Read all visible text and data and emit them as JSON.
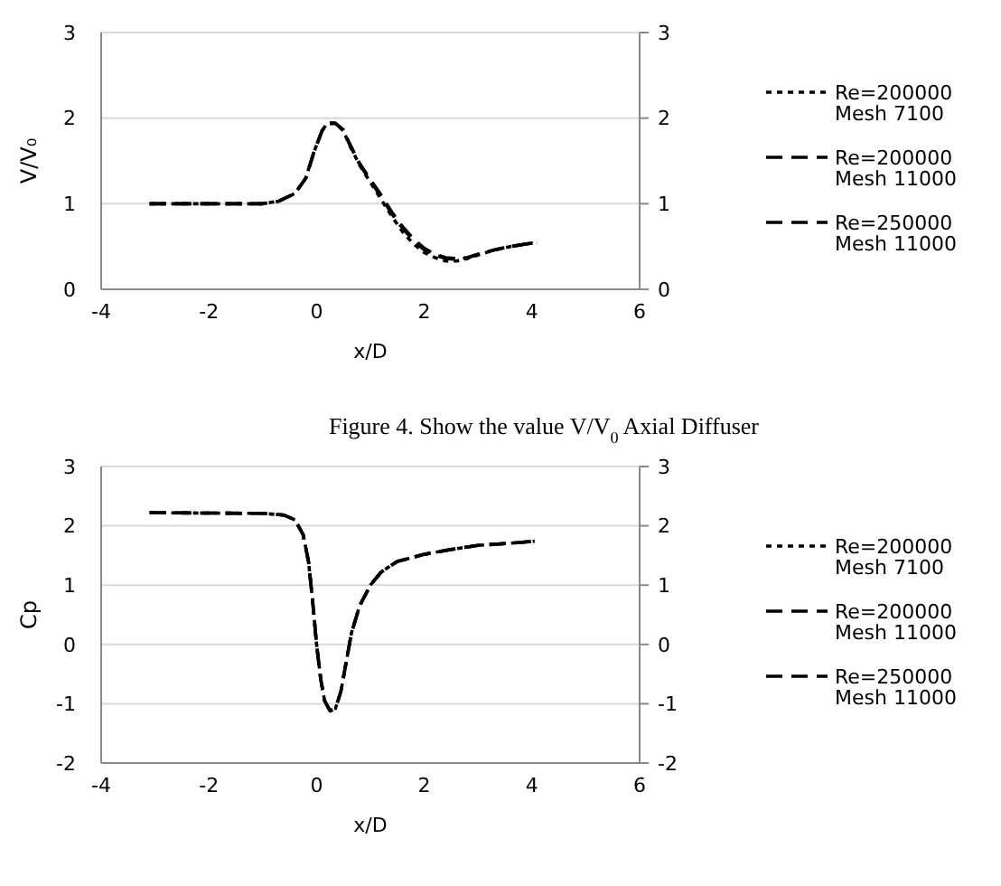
{
  "chart_data": [
    {
      "type": "line",
      "ylabel": "V/V₀",
      "xlabel": "x/D",
      "annotations": [
        "Figure 4. Show the value V/V$_{0}$ Axial Diffuser"
      ],
      "xlim": [
        -4,
        6
      ],
      "xticks": [
        -4,
        -2,
        0,
        2,
        4,
        6
      ],
      "ylim": [
        0,
        3
      ],
      "yticks": [
        0,
        1,
        2,
        3
      ],
      "y2lim": [
        0,
        3
      ],
      "y2ticks": [
        0,
        1,
        2,
        3
      ],
      "grid": "y",
      "legend": "right",
      "series": [
        {
          "name": "Re=200000\nMesh 7100",
          "color": "#000000",
          "line_style": "dotted",
          "x": [
            -3.1,
            -1.5,
            -1,
            -0.7,
            -0.4,
            -0.2,
            -0.05,
            0.1,
            0.2,
            0.35,
            0.5,
            0.6,
            0.8,
            1,
            1.2,
            1.4,
            1.6,
            1.8,
            2,
            2.2,
            2.4,
            2.6,
            2.8,
            3,
            3.3,
            3.6,
            4,
            4.1
          ],
          "values": [
            1,
            1,
            1,
            1.03,
            1.12,
            1.3,
            1.6,
            1.85,
            1.94,
            1.94,
            1.85,
            1.7,
            1.45,
            1.25,
            1.05,
            0.85,
            0.67,
            0.53,
            0.43,
            0.37,
            0.33,
            0.33,
            0.36,
            0.4,
            0.46,
            0.5,
            0.54,
            0.54
          ]
        },
        {
          "name": "Re=200000\nMesh 11000",
          "color": "#000000",
          "line_style": "dashed",
          "x": [
            -3.1,
            -1.5,
            -1,
            -0.7,
            -0.4,
            -0.2,
            -0.05,
            0.1,
            0.2,
            0.35,
            0.5,
            0.6,
            0.8,
            1,
            1.2,
            1.4,
            1.6,
            1.8,
            2,
            2.2,
            2.4,
            2.6,
            2.8,
            3,
            3.3,
            3.6,
            4,
            4.1
          ],
          "values": [
            1,
            1,
            1,
            1.03,
            1.12,
            1.3,
            1.6,
            1.85,
            1.94,
            1.94,
            1.86,
            1.72,
            1.47,
            1.28,
            1.1,
            0.9,
            0.73,
            0.59,
            0.48,
            0.41,
            0.37,
            0.36,
            0.37,
            0.41,
            0.46,
            0.5,
            0.54,
            0.54
          ]
        },
        {
          "name": "Re=250000\nMesh 11000",
          "color": "#000000",
          "line_style": "dashed",
          "x": [
            -3.1,
            -1.5,
            -1,
            -0.7,
            -0.4,
            -0.2,
            -0.05,
            0.1,
            0.2,
            0.35,
            0.5,
            0.6,
            0.8,
            1,
            1.2,
            1.4,
            1.6,
            1.8,
            2,
            2.2,
            2.4,
            2.6,
            2.8,
            3,
            3.3,
            3.6,
            4,
            4.1
          ],
          "values": [
            1,
            1,
            1,
            1.03,
            1.12,
            1.3,
            1.6,
            1.85,
            1.94,
            1.94,
            1.86,
            1.71,
            1.46,
            1.27,
            1.08,
            0.88,
            0.71,
            0.57,
            0.46,
            0.4,
            0.36,
            0.35,
            0.37,
            0.41,
            0.46,
            0.5,
            0.54,
            0.54
          ]
        }
      ]
    },
    {
      "type": "line",
      "ylabel": "Cp",
      "xlabel": "x/D",
      "xlim": [
        -4,
        6
      ],
      "xticks": [
        -4,
        -2,
        0,
        2,
        4,
        6
      ],
      "ylim": [
        -2,
        3
      ],
      "yticks": [
        -2,
        -1,
        0,
        1,
        2,
        3
      ],
      "y2lim": [
        -2,
        3
      ],
      "y2ticks": [
        -2,
        -1,
        0,
        1,
        2,
        3
      ],
      "grid": "y",
      "legend": "right",
      "series": [
        {
          "name": "Re=200000\nMesh 7100",
          "color": "#000000",
          "line_style": "dotted",
          "x": [
            -3.1,
            -1,
            -0.6,
            -0.4,
            -0.25,
            -0.15,
            -0.08,
            0,
            0.08,
            0.15,
            0.25,
            0.35,
            0.45,
            0.55,
            0.65,
            0.8,
            1,
            1.2,
            1.5,
            2,
            2.5,
            3,
            3.5,
            4.05
          ],
          "values": [
            2.22,
            2.21,
            2.18,
            2.1,
            1.85,
            1.4,
            0.8,
            0,
            -0.6,
            -0.95,
            -1.12,
            -1.08,
            -0.8,
            -0.3,
            0.2,
            0.65,
            1,
            1.22,
            1.4,
            1.52,
            1.6,
            1.67,
            1.7,
            1.74
          ]
        },
        {
          "name": "Re=200000\nMesh 11000",
          "color": "#000000",
          "line_style": "dashed",
          "x": [
            -3.1,
            -1,
            -0.6,
            -0.4,
            -0.25,
            -0.15,
            -0.08,
            0,
            0.08,
            0.15,
            0.25,
            0.35,
            0.45,
            0.55,
            0.65,
            0.8,
            1,
            1.2,
            1.5,
            2,
            2.5,
            3,
            3.5,
            4.05
          ],
          "values": [
            2.22,
            2.21,
            2.18,
            2.1,
            1.85,
            1.4,
            0.8,
            0,
            -0.6,
            -0.95,
            -1.12,
            -1.08,
            -0.8,
            -0.3,
            0.2,
            0.65,
            1,
            1.22,
            1.4,
            1.52,
            1.6,
            1.67,
            1.7,
            1.74
          ]
        },
        {
          "name": "Re=250000\nMesh 11000",
          "color": "#000000",
          "line_style": "dashed",
          "x": [
            -3.1,
            -1,
            -0.6,
            -0.4,
            -0.25,
            -0.15,
            -0.08,
            0,
            0.08,
            0.15,
            0.25,
            0.35,
            0.45,
            0.55,
            0.65,
            0.8,
            1,
            1.2,
            1.5,
            2,
            2.5,
            3,
            3.5,
            4.05
          ],
          "values": [
            2.22,
            2.21,
            2.18,
            2.1,
            1.85,
            1.4,
            0.8,
            0,
            -0.6,
            -0.95,
            -1.12,
            -1.08,
            -0.8,
            -0.3,
            0.2,
            0.65,
            1,
            1.22,
            1.4,
            1.52,
            1.6,
            1.67,
            1.7,
            1.74
          ]
        }
      ]
    }
  ]
}
